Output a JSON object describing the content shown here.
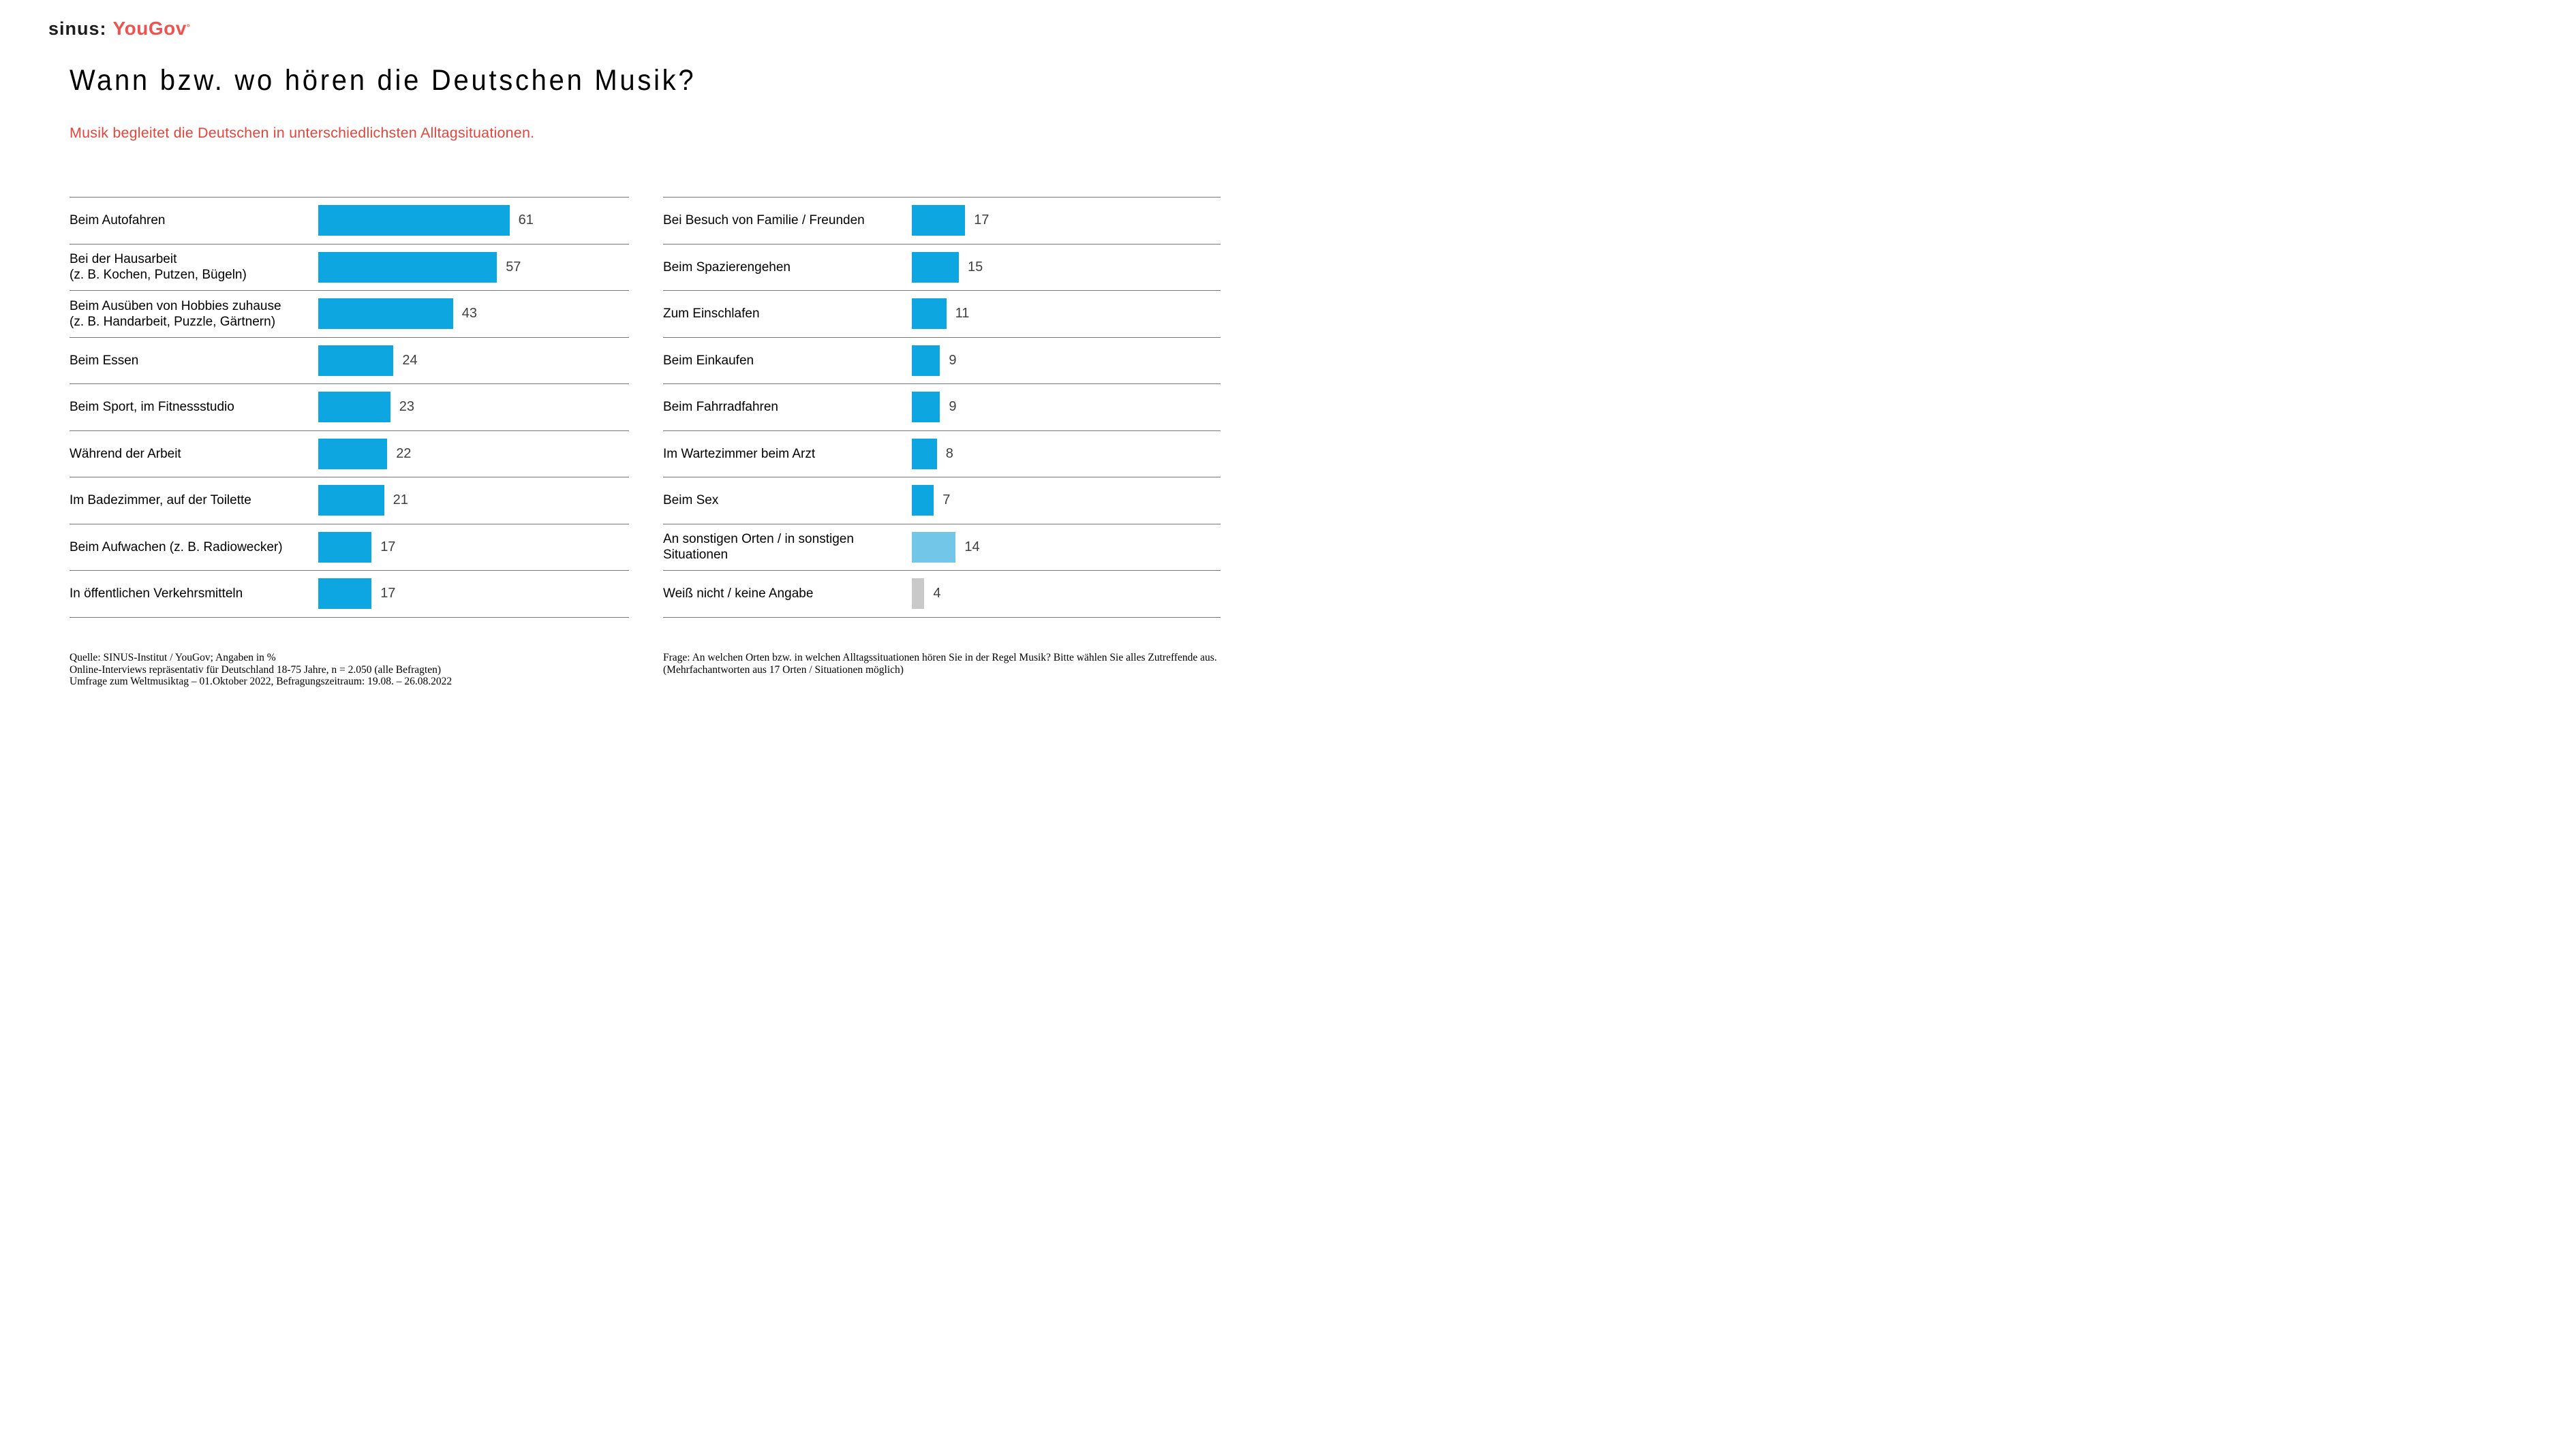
{
  "logo": {
    "sinus": "sinus",
    "colon": ":",
    "yougov": "YouGov",
    "mark": "°"
  },
  "header": {
    "title": "Wann bzw. wo hören die Deutschen Musik?",
    "subtitle": "Musik begleitet die Deutschen in unterschiedlichsten Alltagsituationen."
  },
  "chart_data": {
    "type": "bar",
    "orientation": "horizontal",
    "unit": "percent",
    "title": "Wann bzw. wo hören die Deutschen Musik?",
    "subtitle": "Musik begleitet die Deutschen in unterschiedlichsten Alltagsituationen.",
    "value_range": [
      0,
      61
    ],
    "grid": false,
    "colors": {
      "bar_blue": "#0ea6e0",
      "bar_light_blue": "#72c6e8",
      "bar_gray": "#c9c9c9",
      "value_text": "#3f3f3f",
      "separator": "#787878",
      "accent_red": "#e2453c",
      "logo_red": "#ef5350"
    },
    "columns": [
      {
        "name": "left",
        "rows": [
          {
            "label": "Beim Autofahren",
            "value": 61,
            "color": "#0ea6e0"
          },
          {
            "label": "Bei der Hausarbeit\n(z. B. Kochen, Putzen, Bügeln)",
            "value": 57,
            "color": "#0ea6e0"
          },
          {
            "label": "Beim Ausüben von Hobbies zuhause\n(z. B. Handarbeit, Puzzle, Gärtnern)",
            "value": 43,
            "color": "#0ea6e0"
          },
          {
            "label": "Beim Essen",
            "value": 24,
            "color": "#0ea6e0"
          },
          {
            "label": "Beim Sport, im Fitnessstudio",
            "value": 23,
            "color": "#0ea6e0"
          },
          {
            "label": "Während der Arbeit",
            "value": 22,
            "color": "#0ea6e0"
          },
          {
            "label": "Im Badezimmer, auf der Toilette",
            "value": 21,
            "color": "#0ea6e0"
          },
          {
            "label": "Beim Aufwachen (z. B. Radiowecker)",
            "value": 17,
            "color": "#0ea6e0"
          },
          {
            "label": "In öffentlichen Verkehrsmitteln",
            "value": 17,
            "color": "#0ea6e0"
          }
        ]
      },
      {
        "name": "right",
        "rows": [
          {
            "label": "Bei Besuch von Familie / Freunden",
            "value": 17,
            "color": "#0ea6e0"
          },
          {
            "label": "Beim Spazierengehen",
            "value": 15,
            "color": "#0ea6e0"
          },
          {
            "label": "Zum Einschlafen",
            "value": 11,
            "color": "#0ea6e0"
          },
          {
            "label": "Beim Einkaufen",
            "value": 9,
            "color": "#0ea6e0"
          },
          {
            "label": "Beim Fahrradfahren",
            "value": 9,
            "color": "#0ea6e0"
          },
          {
            "label": "Im Wartezimmer beim Arzt",
            "value": 8,
            "color": "#0ea6e0"
          },
          {
            "label": "Beim Sex",
            "value": 7,
            "color": "#0ea6e0"
          },
          {
            "label": "An sonstigen Orten / in sonstigen\nSituationen",
            "value": 14,
            "color": "#72c6e8"
          },
          {
            "label": "Weiß nicht / keine Angabe",
            "value": 4,
            "color": "#c9c9c9"
          }
        ]
      }
    ]
  },
  "footnotes": {
    "left_lines": [
      "Quelle: SINUS-Institut / YouGov; Angaben in %",
      "Online-Interviews repräsentativ für Deutschland 18-75 Jahre, n = 2.050 (alle Befragten)",
      "Umfrage zum Weltmusiktag – 01.Oktober 2022, Befragungszeitraum: 19.08. – 26.08.2022"
    ],
    "right": "Frage: An welchen Orten bzw. in welchen Alltagssituationen hören Sie in der Regel Musik? Bitte wählen Sie alles Zutreffende aus. (Mehrfachantworten aus 17 Orten / Situationen möglich)"
  }
}
